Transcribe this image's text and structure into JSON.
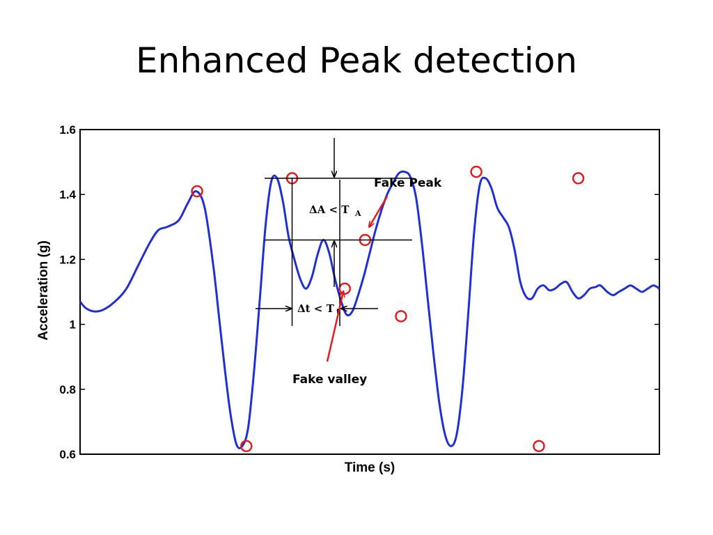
{
  "slide": {
    "title": "Enhanced Peak detection"
  },
  "chart_data": {
    "type": "line",
    "xlabel": "Time (s)",
    "ylabel": "Acceleration (g)",
    "xlim": [
      0,
      100
    ],
    "ylim": [
      0.6,
      1.6
    ],
    "yticks": [
      0.6,
      0.8,
      1.0,
      1.2,
      1.4,
      1.6
    ],
    "ytick_labels": [
      "0.6",
      "0.8",
      "1",
      "1.2",
      "1.4",
      "1.6"
    ],
    "xtick_labels": [],
    "grid": false,
    "colors": {
      "line": "#1f2fd6",
      "marker": "#e41a1c",
      "arrow_red": "#e41a1c",
      "arrow_black": "#000000"
    },
    "series": [
      {
        "x": [
          0,
          1,
          2.4,
          4,
          6,
          8,
          10,
          12,
          13.5,
          15,
          17,
          18.5,
          20,
          21.5,
          23,
          24,
          25,
          26,
          27,
          28,
          29,
          30,
          31,
          32,
          33,
          34,
          35,
          36,
          37,
          38,
          39,
          40,
          41,
          42,
          43,
          44,
          45,
          46,
          47,
          48,
          49,
          50,
          51,
          52,
          53,
          54,
          55,
          56,
          57,
          58,
          59,
          60,
          61,
          62,
          63,
          64,
          65,
          66,
          67,
          68,
          69,
          70,
          71,
          72,
          73,
          74,
          75,
          76,
          77,
          78,
          79,
          80,
          81,
          82,
          83,
          84,
          85,
          86,
          87,
          88,
          89,
          89.8,
          91,
          92,
          93,
          94,
          95,
          96,
          97,
          98,
          99,
          100
        ],
        "y": [
          1.07,
          1.05,
          1.04,
          1.045,
          1.07,
          1.11,
          1.18,
          1.25,
          1.29,
          1.3,
          1.32,
          1.37,
          1.41,
          1.36,
          1.18,
          1.02,
          0.86,
          0.72,
          0.63,
          0.625,
          0.68,
          0.85,
          1.07,
          1.3,
          1.44,
          1.45,
          1.38,
          1.27,
          1.2,
          1.14,
          1.11,
          1.145,
          1.215,
          1.26,
          1.22,
          1.14,
          1.075,
          1.03,
          1.04,
          1.09,
          1.15,
          1.22,
          1.29,
          1.35,
          1.4,
          1.435,
          1.465,
          1.47,
          1.455,
          1.39,
          1.25,
          1.08,
          0.91,
          0.76,
          0.66,
          0.625,
          0.66,
          0.8,
          1.03,
          1.28,
          1.43,
          1.45,
          1.42,
          1.36,
          1.33,
          1.3,
          1.23,
          1.13,
          1.085,
          1.08,
          1.11,
          1.12,
          1.105,
          1.11,
          1.125,
          1.13,
          1.1,
          1.08,
          1.09,
          1.11,
          1.115,
          1.12,
          1.1,
          1.09,
          1.1,
          1.11,
          1.12,
          1.11,
          1.1,
          1.11,
          1.12,
          1.11
        ]
      }
    ],
    "markers": [
      {
        "x": 20.2,
        "y": 1.41
      },
      {
        "x": 28.7,
        "y": 0.625
      },
      {
        "x": 36.6,
        "y": 1.45
      },
      {
        "x": 45.7,
        "y": 1.11
      },
      {
        "x": 49.2,
        "y": 1.26
      },
      {
        "x": 55.4,
        "y": 1.025
      },
      {
        "x": 68.4,
        "y": 1.47
      },
      {
        "x": 79.2,
        "y": 0.625
      },
      {
        "x": 86.0,
        "y": 1.45
      }
    ],
    "annotations": {
      "fake_peak": "Fake Peak",
      "fake_valley": "Fake valley",
      "delta_a": "ΔA < T",
      "delta_a_sub": "A",
      "delta_t": "Δt < T",
      "delta_t_sub": "t"
    }
  }
}
